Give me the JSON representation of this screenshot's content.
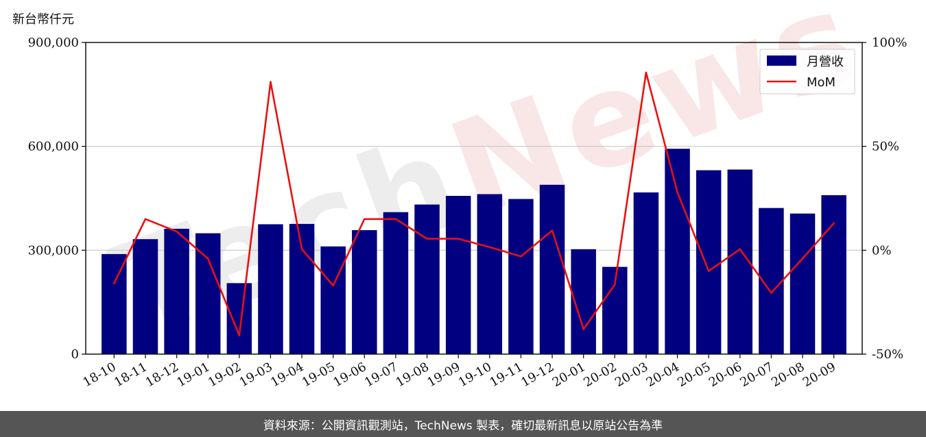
{
  "watermark": {
    "text_a": "Tech",
    "text_b": "News"
  },
  "footer": {
    "text": "資料來源：公開資訊觀測站，TechNews 製表，確切最新訊息以原站公告為準"
  },
  "chart_data": {
    "type": "bar",
    "unit_label": "新台幣仟元",
    "categories": [
      "18-10",
      "18-11",
      "18-12",
      "19-01",
      "19-02",
      "19-03",
      "19-04",
      "19-05",
      "19-06",
      "19-07",
      "19-08",
      "19-09",
      "19-10",
      "19-11",
      "19-12",
      "20-01",
      "20-02",
      "20-03",
      "20-04",
      "20-05",
      "20-06",
      "20-07",
      "20-08",
      "20-09"
    ],
    "series": [
      {
        "name": "月營收",
        "type": "bar",
        "axis": "left",
        "color": "#000080",
        "values": [
          289000,
          332000,
          362000,
          349000,
          205000,
          375000,
          376000,
          311000,
          358000,
          410000,
          432000,
          457000,
          462000,
          448000,
          489000,
          303000,
          252000,
          467000,
          593000,
          531000,
          533000,
          422000,
          406000,
          459000
        ]
      },
      {
        "name": "MoM",
        "type": "line",
        "axis": "right",
        "color": "#e81010",
        "values": [
          -16,
          15,
          9,
          -4,
          -41,
          81,
          0.5,
          -17,
          15,
          15,
          5.5,
          5.5,
          1.5,
          -3,
          9.5,
          -38,
          -16.5,
          85.5,
          28,
          -10,
          0.5,
          -20.5,
          -4,
          13
        ]
      }
    ],
    "y_left": {
      "min": 0,
      "max": 900000,
      "ticks": [
        0,
        300000,
        600000,
        900000
      ],
      "tick_labels": [
        "0",
        "300,000",
        "600,000",
        "900,000"
      ]
    },
    "y_right": {
      "min": -50,
      "max": 100,
      "ticks": [
        -50,
        0,
        50,
        100
      ],
      "tick_labels": [
        "-50%",
        "0%",
        "50%",
        "100%"
      ]
    },
    "grid": "horizontal",
    "legend_position": "top-right"
  }
}
